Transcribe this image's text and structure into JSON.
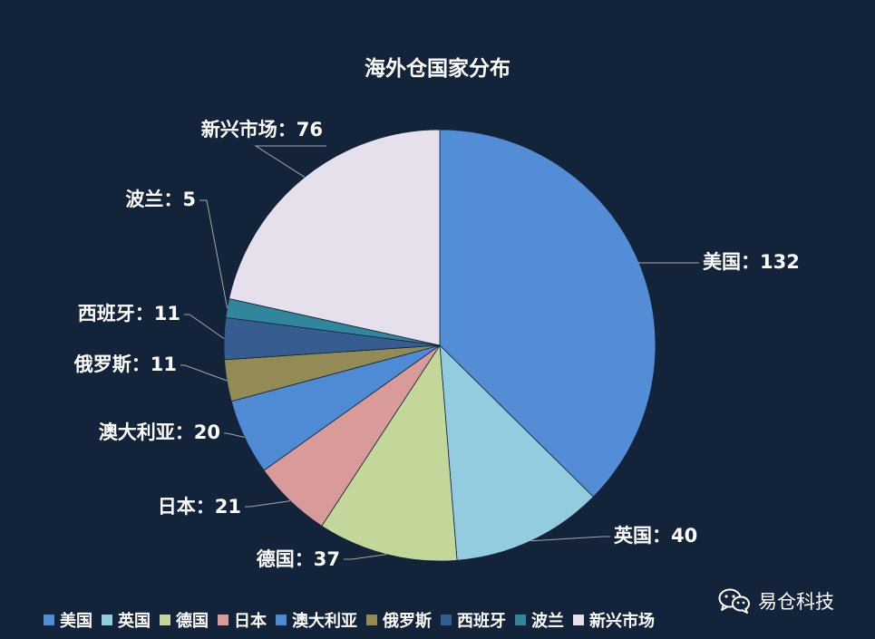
{
  "chart_data": {
    "type": "pie",
    "title": "海外仓国家分布",
    "label_separator": "：",
    "slices": [
      {
        "label": "美国",
        "value": 132,
        "color": "#528dd6"
      },
      {
        "label": "英国",
        "value": 40,
        "color": "#94ccdf"
      },
      {
        "label": "德国",
        "value": 37,
        "color": "#c4d79a"
      },
      {
        "label": "日本",
        "value": 21,
        "color": "#d89b9a"
      },
      {
        "label": "澳大利亚",
        "value": 20,
        "color": "#4f8ad4"
      },
      {
        "label": "俄罗斯",
        "value": 11,
        "color": "#948a55"
      },
      {
        "label": "西班牙",
        "value": 11,
        "color": "#365d90"
      },
      {
        "label": "波兰",
        "value": 5,
        "color": "#31869b"
      },
      {
        "label": "新兴市场",
        "value": 76,
        "color": "#e6e0ec"
      }
    ],
    "legend_position": "bottom"
  },
  "watermark": {
    "text": "易仓科技",
    "icon": "wechat-icon"
  }
}
